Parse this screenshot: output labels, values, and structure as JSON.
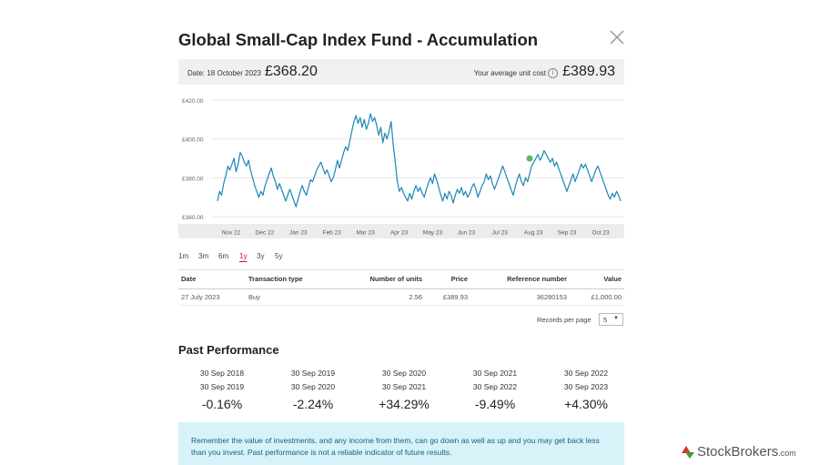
{
  "modal": {
    "title": "Global Small-Cap Index Fund - Accumulation"
  },
  "price_bar": {
    "date_label": "Date: 18 October 2023",
    "current_price": "£368.20",
    "avg_label": "Your average unit cost",
    "info_glyph": "i",
    "avg_price": "£389.93"
  },
  "chart_data": {
    "type": "line",
    "y_ticks": [
      "£420.00",
      "£400.00",
      "£380.00",
      "£360.00"
    ],
    "ylim": [
      360,
      420
    ],
    "x_ticks": [
      "Nov 22",
      "Dec 22",
      "Jan 23",
      "Feb 23",
      "Mar 23",
      "Apr 23",
      "May 23",
      "Jun 23",
      "Jul 23",
      "Aug 23",
      "Sep 23",
      "Oct 23"
    ],
    "grid": true,
    "line_color": "#1a86b5",
    "marker_color": "#5cb85c",
    "series": [
      {
        "values": [
          368,
          373,
          371,
          377,
          381,
          386,
          384,
          387,
          390,
          383,
          387,
          393,
          391,
          388,
          386,
          389,
          384,
          380,
          376,
          373,
          370,
          373,
          371,
          376,
          379,
          382,
          385,
          381,
          378,
          374,
          377,
          374,
          371,
          368,
          371,
          374,
          371,
          368,
          365,
          369,
          373,
          376,
          373,
          371,
          375,
          379,
          378,
          381,
          384,
          386,
          388,
          385,
          382,
          384,
          381,
          378,
          380,
          384,
          389,
          385,
          389,
          393,
          396,
          394,
          399,
          404,
          409,
          412,
          408,
          411,
          406,
          410,
          405,
          408,
          413,
          409,
          411,
          407,
          402,
          406,
          398,
          403,
          400,
          404,
          409,
          397,
          388,
          378,
          373,
          375,
          372,
          370,
          368,
          372,
          369,
          373,
          376,
          373,
          375,
          372,
          370,
          374,
          377,
          380,
          377,
          382,
          379,
          375,
          371,
          368,
          372,
          369,
          373,
          371,
          367,
          371,
          374,
          372,
          375,
          371,
          373,
          370,
          372,
          375,
          377,
          374,
          370,
          373,
          376,
          378,
          382,
          379,
          381,
          377,
          374,
          377,
          380,
          383,
          386,
          383,
          380,
          377,
          374,
          371,
          375,
          379,
          382,
          378,
          376,
          380,
          378,
          382,
          386,
          388,
          390,
          392,
          389,
          391,
          394,
          392,
          390,
          388,
          390,
          386,
          388,
          385,
          382,
          379,
          376,
          373,
          376,
          379,
          382,
          378,
          381,
          384,
          387,
          385,
          387,
          384,
          381,
          378,
          381,
          384,
          386,
          383,
          380,
          377,
          374,
          371,
          369,
          372,
          370,
          373,
          371,
          368
        ],
        "x_start": "14 Oct 2022",
        "x_end": "18 Oct 2023"
      }
    ],
    "marker_date": "27 July 2023",
    "marker_value": 389.93
  },
  "ranges": {
    "items": [
      "1m",
      "3m",
      "6m",
      "1y",
      "3y",
      "5y"
    ],
    "active": "1y"
  },
  "transactions": {
    "headers": {
      "date": "Date",
      "type": "Transaction type",
      "units": "Number of units",
      "price": "Price",
      "ref": "Reference number",
      "value": "Value"
    },
    "rows": [
      {
        "date": "27 July 2023",
        "type": "Buy",
        "units": "2.56",
        "price": "£389.93",
        "ref": "36280153",
        "value": "£1,000.00"
      }
    ],
    "records_per_page_label": "Records per page",
    "records_per_page_value": "5",
    "dropdown_arrow": "▼"
  },
  "past_performance": {
    "title": "Past Performance",
    "periods": [
      {
        "from": "30 Sep 2018",
        "to": "30 Sep 2019",
        "pct": "-0.16%"
      },
      {
        "from": "30 Sep 2019",
        "to": "30 Sep 2020",
        "pct": "-2.24%"
      },
      {
        "from": "30 Sep 2020",
        "to": "30 Sep 2021",
        "pct": "+34.29%"
      },
      {
        "from": "30 Sep 2021",
        "to": "30 Sep 2022",
        "pct": "-9.49%"
      },
      {
        "from": "30 Sep 2022",
        "to": "30 Sep 2023",
        "pct": "+4.30%"
      }
    ]
  },
  "notice": {
    "text": "Remember the value of investments, and any income from them, can go down as well as up and you may get back less than you invest. Past performance is not a reliable indicator of future results."
  },
  "watermark": {
    "brand": "StockBrokers",
    "suffix": ".com",
    "colors": [
      "#d9342b",
      "#3b9c3f"
    ]
  }
}
